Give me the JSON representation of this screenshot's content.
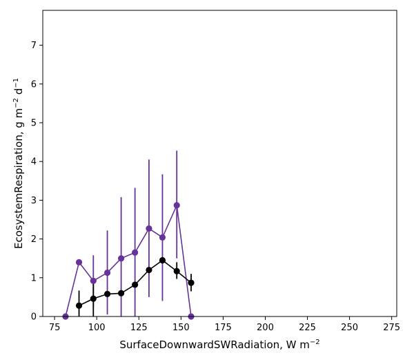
{
  "chart_data": {
    "type": "line",
    "xlabel": "SurfaceDownwardSWRadiation,  W m",
    "xlabel_sup": "−2",
    "ylabel": "EcosystemRespiration,  g m",
    "ylabel_sup1": "−2",
    "ylabel_mid": " d",
    "ylabel_sup2": "−1",
    "xlim": [
      68,
      278
    ],
    "ylim": [
      0,
      7.9
    ],
    "xticks": [
      75,
      100,
      125,
      150,
      175,
      200,
      225,
      250,
      275
    ],
    "yticks": [
      0,
      1,
      2,
      3,
      4,
      5,
      6,
      7
    ],
    "grid": false,
    "series": [
      {
        "color": "#663399",
        "x": [
          81.5,
          89.5,
          98,
          106.3,
          114.5,
          122.7,
          131,
          139,
          147.5,
          156
        ],
        "y": [
          0.0,
          1.4,
          0.92,
          1.13,
          1.5,
          1.65,
          2.27,
          2.04,
          2.87,
          0.0
        ],
        "err_low": [
          null,
          null,
          0.25,
          0.05,
          0.0,
          0.0,
          0.5,
          0.4,
          1.5,
          null
        ],
        "err_high": [
          null,
          null,
          1.58,
          2.22,
          3.08,
          3.32,
          4.05,
          3.67,
          4.28,
          null
        ]
      },
      {
        "color": "#000000",
        "x": [
          89.5,
          98,
          106.3,
          114.5,
          122.7,
          131,
          139,
          147.5,
          156
        ],
        "y": [
          0.28,
          0.46,
          0.58,
          0.6,
          0.82,
          1.2,
          1.45,
          1.17,
          0.87
        ],
        "err_low": [
          0.0,
          0.0,
          null,
          null,
          null,
          null,
          null,
          0.97,
          0.65
        ],
        "err_high": [
          0.67,
          0.92,
          null,
          null,
          null,
          null,
          null,
          1.4,
          1.1
        ]
      }
    ]
  }
}
